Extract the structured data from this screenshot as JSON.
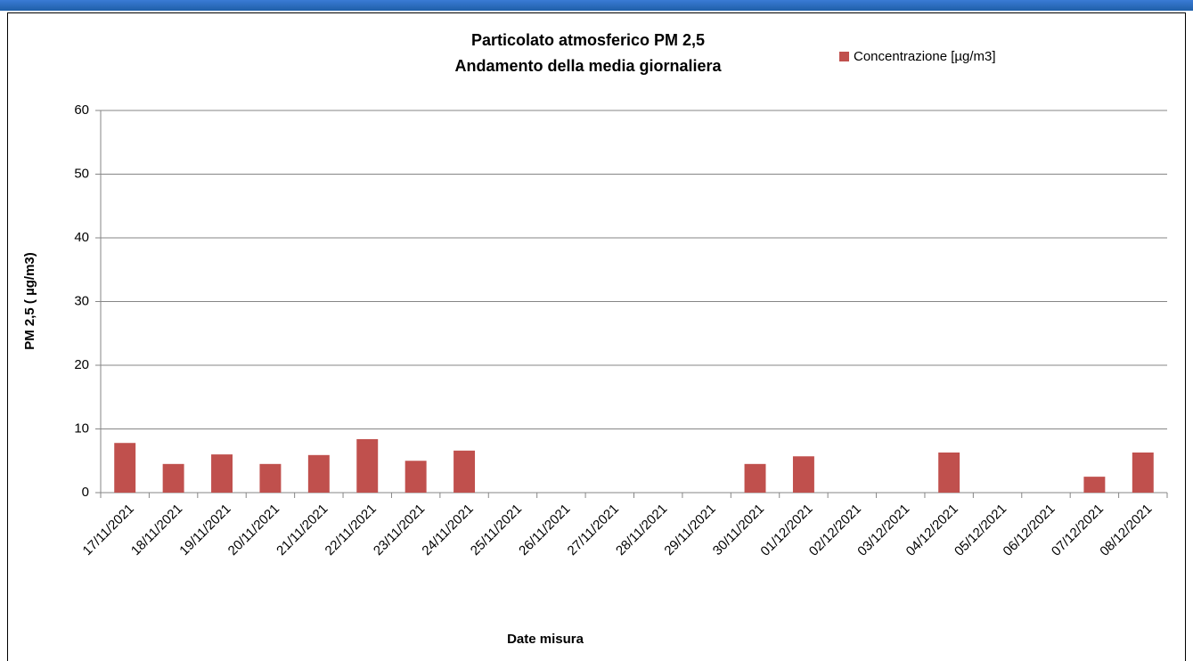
{
  "chart_data": {
    "type": "bar",
    "title": "Particolato  atmosferico PM 2,5",
    "subtitle": "Andamento della media giornaliera",
    "x_label": "Date misura",
    "y_label": "PM 2,5 ( µg/m3)",
    "categories": [
      "17/11/2021",
      "18/11/2021",
      "19/11/2021",
      "20/11/2021",
      "21/11/2021",
      "22/11/2021",
      "23/11/2021",
      "24/11/2021",
      "25/11/2021",
      "26/11/2021",
      "27/11/2021",
      "28/11/2021",
      "29/11/2021",
      "30/11/2021",
      "01/12/2021",
      "02/12/2021",
      "03/12/2021",
      "04/12/2021",
      "05/12/2021",
      "06/12/2021",
      "07/12/2021",
      "08/12/2021"
    ],
    "series": [
      {
        "name": "Concentrazione [µg/m3]",
        "color": "#c0504d",
        "values": [
          7.8,
          4.5,
          6.0,
          4.5,
          5.9,
          8.4,
          5.0,
          6.6,
          null,
          null,
          null,
          null,
          null,
          4.5,
          5.7,
          null,
          null,
          6.3,
          null,
          null,
          2.5,
          6.3
        ]
      }
    ],
    "ylim": [
      0,
      60
    ],
    "yticks": [
      0,
      10,
      20,
      30,
      40,
      50,
      60
    ],
    "grid": true,
    "legend": "top-right"
  }
}
